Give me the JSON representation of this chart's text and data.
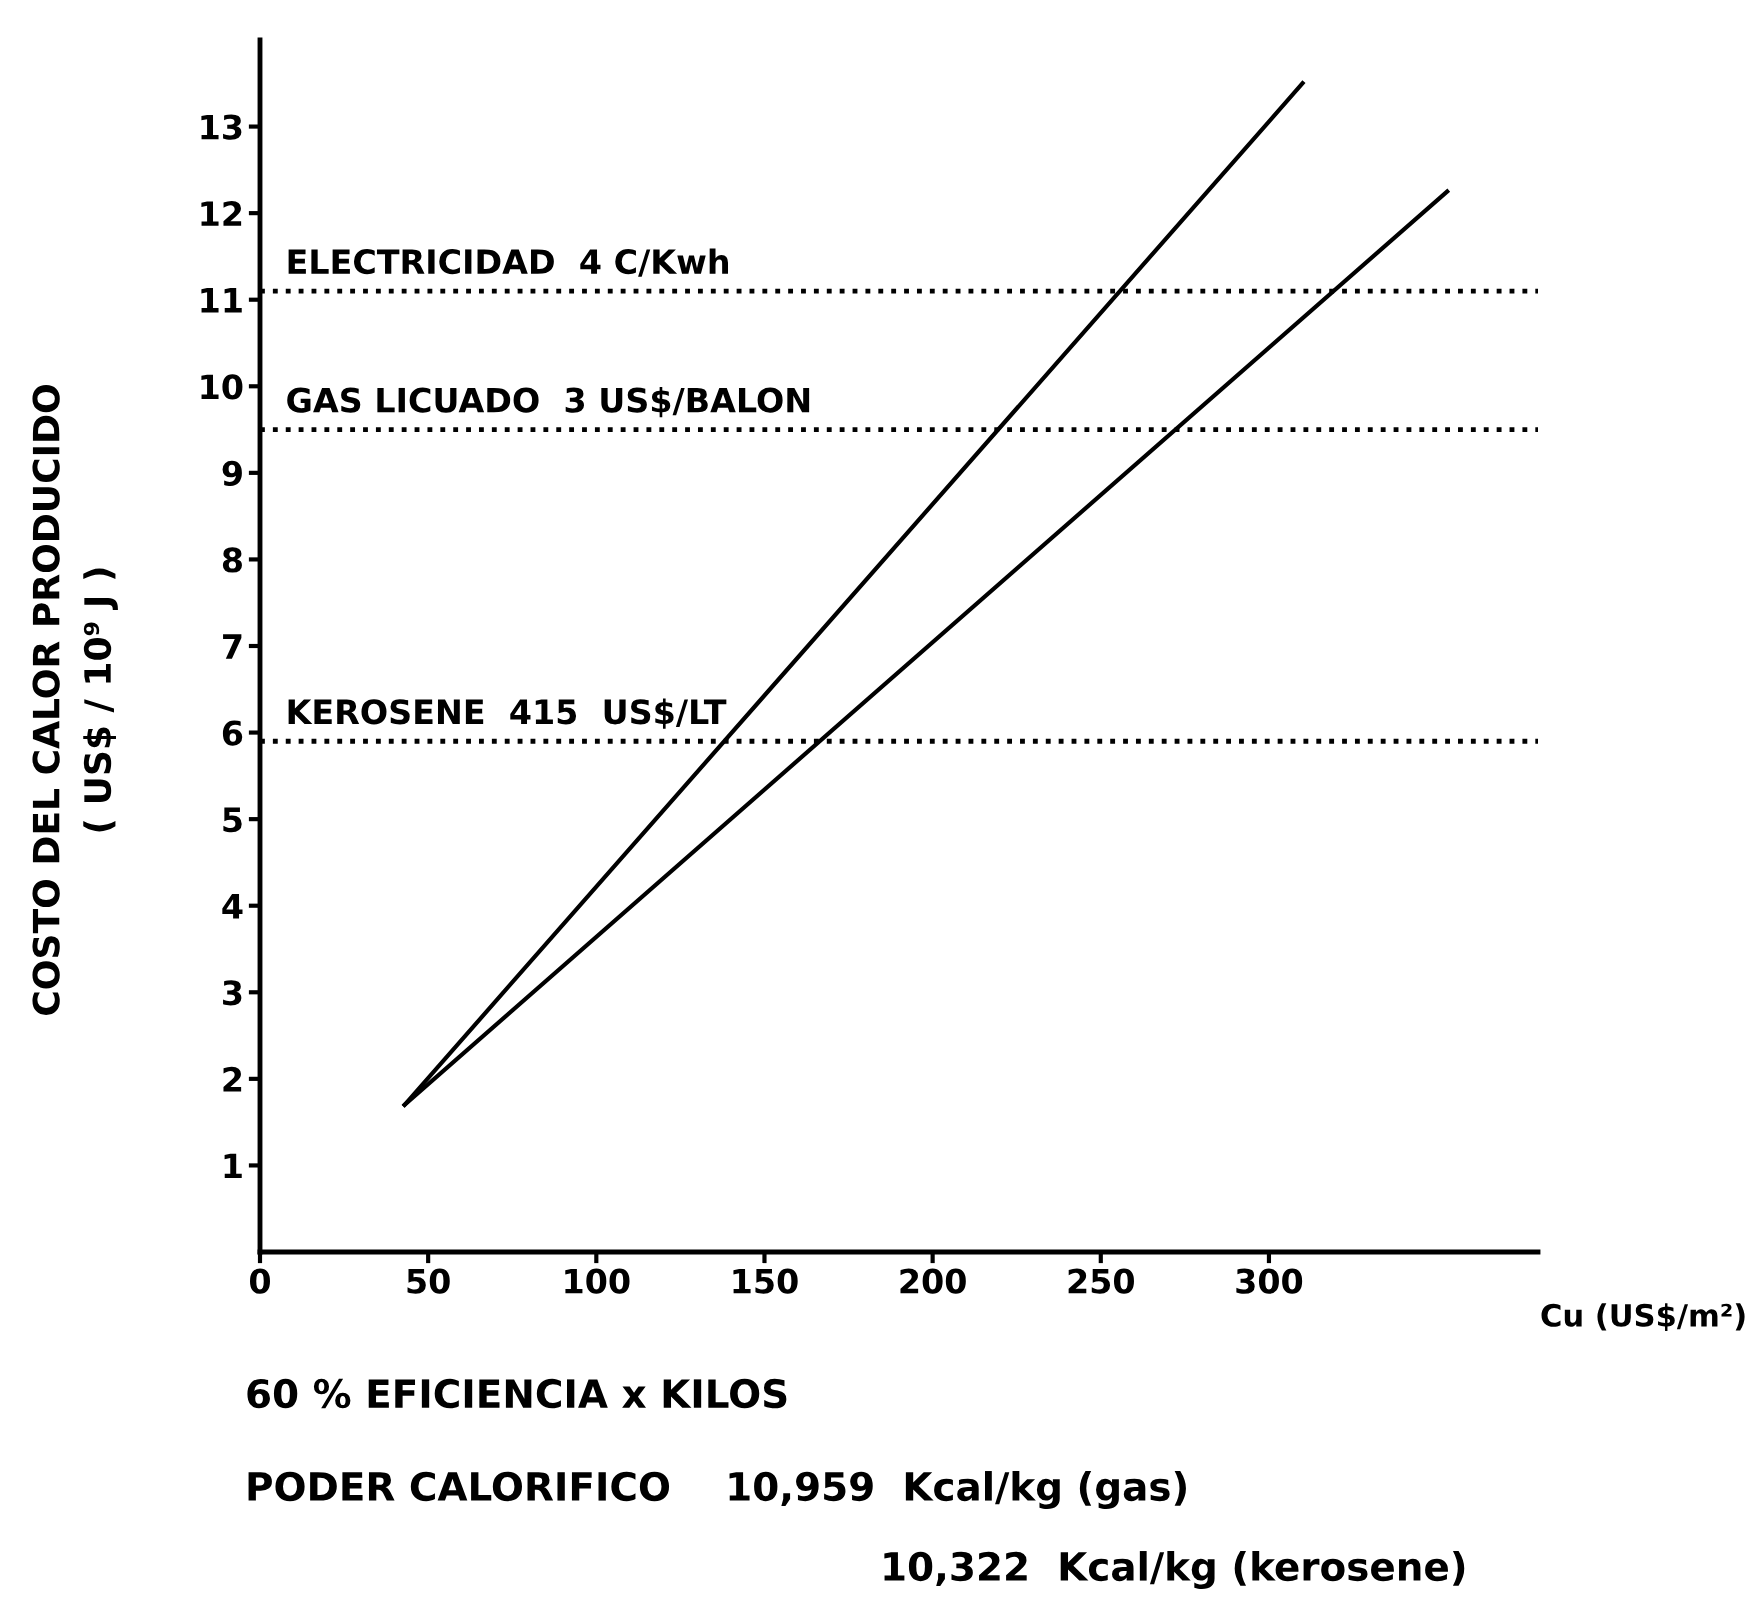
{
  "chart_data": {
    "type": "line",
    "xlabel": "Cu (US$/m²)",
    "ylabel": "COSTO DEL CALOR PRODUCIDO\n( US$ / 10⁹ J )",
    "series": [
      {
        "color": "#000000",
        "x": [
          43,
          310
        ],
        "values": [
          1.7,
          13.5
        ]
      },
      {
        "color": "#000000",
        "x": [
          43,
          353
        ],
        "values": [
          1.7,
          12.25
        ]
      }
    ],
    "xlim": [
      0,
      380
    ],
    "ylim": [
      0,
      14
    ],
    "xticks": [
      0,
      50,
      100,
      150,
      200,
      250,
      300
    ],
    "yticks": [
      1,
      2,
      3,
      4,
      5,
      6,
      7,
      8,
      9,
      10,
      11,
      12,
      13
    ],
    "ref_lines": [
      {
        "axis": "y",
        "value": 11.1,
        "label": "ELECTRICIDAD  4 C/Kwh",
        "line_style": "dotted",
        "color": "#000000"
      },
      {
        "axis": "y",
        "value": 9.5,
        "label": "GAS LICUADO  3 US$/BALON",
        "line_style": "dotted",
        "color": "#000000"
      },
      {
        "axis": "y",
        "value": 5.9,
        "label": "KEROSENE  415  US$/LT",
        "line_style": "dotted",
        "color": "#000000"
      }
    ],
    "annotations": [
      "60 % EFICIENCIA x KILOS",
      "PODER CALORIFICO    10,959  Kcal/kg (gas)",
      "10,322  Kcal/kg (kerosene)"
    ],
    "grid": false,
    "marker": "none",
    "line_style": "solid"
  }
}
